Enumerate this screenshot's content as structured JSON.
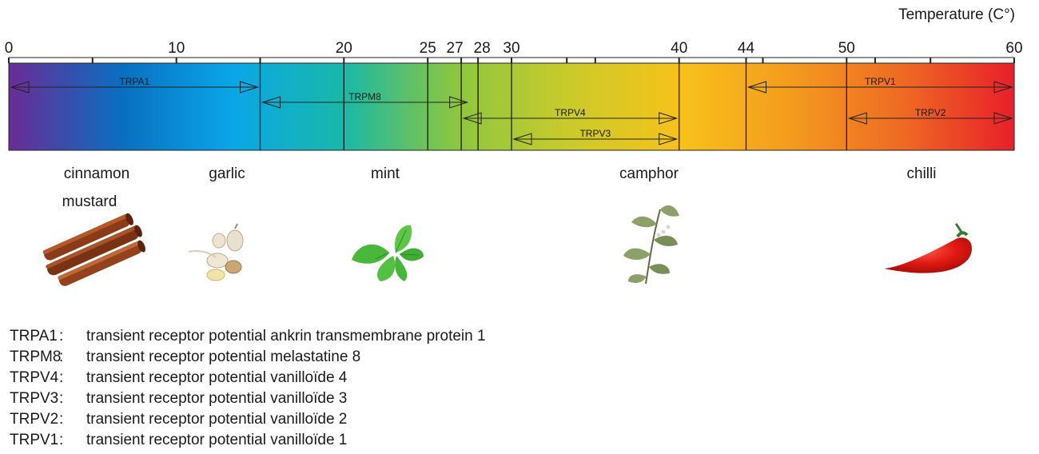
{
  "axis": {
    "title": "Temperature (C°)",
    "min": 0,
    "max": 60,
    "labeled_ticks": [
      0,
      10,
      20,
      25,
      27,
      28,
      30,
      40,
      44,
      50,
      60
    ],
    "minor_ticks": [
      5,
      15,
      33.3,
      35,
      45,
      51.7,
      55
    ]
  },
  "gradient_colors": [
    "#6a2c96",
    "#0a6ec0",
    "#0aa6e8",
    "#19b8a6",
    "#8cc63f",
    "#c9cb2b",
    "#f7c21a",
    "#f39b1f",
    "#ee6a23",
    "#e8202a"
  ],
  "bar_dividers": [
    15,
    20,
    25,
    27,
    28,
    30,
    40,
    44,
    50
  ],
  "channels": [
    {
      "name": "TRPA1",
      "from": 0,
      "to": 15,
      "row": 0
    },
    {
      "name": "TRPM8",
      "from": 15,
      "to": 27.5,
      "row": 1
    },
    {
      "name": "TRPV4",
      "from": 27,
      "to": 40,
      "row": 2
    },
    {
      "name": "TRPV3",
      "from": 30,
      "to": 40,
      "row": 3
    },
    {
      "name": "TRPV1",
      "from": 44,
      "to": 60,
      "row": 0
    },
    {
      "name": "TRPV2",
      "from": 50,
      "to": 60,
      "row": 2
    }
  ],
  "spices": [
    {
      "label": "cinnamon",
      "icon": "cinnamon-icon"
    },
    {
      "label": "mustard",
      "icon": "mustard-icon"
    },
    {
      "label": "garlic",
      "icon": "garlic-icon"
    },
    {
      "label": "mint",
      "icon": "mint-icon"
    },
    {
      "label": "camphor",
      "icon": "camphor-icon"
    },
    {
      "label": "chilli",
      "icon": "chilli-icon"
    }
  ],
  "legend": [
    {
      "abbr": "TRPA1",
      "desc": "transient receptor potential ankrin transmembrane protein 1"
    },
    {
      "abbr": "TRPM8",
      "desc": "transient receptor potential melastatine 8"
    },
    {
      "abbr": "TRPV4",
      "desc": "transient receptor potential vanilloïde 4"
    },
    {
      "abbr": "TRPV3",
      "desc": "transient receptor potential vanilloïde 3"
    },
    {
      "abbr": "TRPV2",
      "desc": "transient receptor potential vanilloïde 2"
    },
    {
      "abbr": "TRPV1",
      "desc": "transient receptor potential vanilloïde 1"
    }
  ],
  "legend_separator": ":"
}
